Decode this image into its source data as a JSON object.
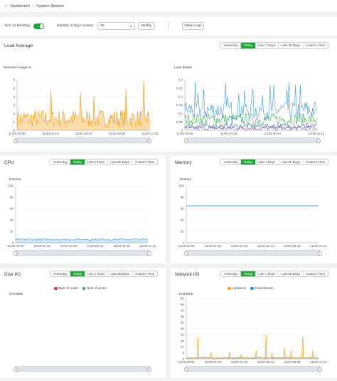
{
  "breadcrumb": {
    "home": "Dashboard",
    "sep": "/",
    "current": "System Monitor"
  },
  "toolbar": {
    "monitor_label": "Turn on Monitory",
    "monitor_on": true,
    "days_label": "Number of days to save:",
    "days_value": "30",
    "modify": "Modify",
    "clean": "Clean Logs"
  },
  "ranges": [
    "Yesterday",
    "Today",
    "Last 7 Days",
    "Last 30 Days",
    "Custom Time"
  ],
  "active_range": "Today",
  "colors": {
    "green": "#20a53a",
    "orange": "#f39c12",
    "blue": "#2e8bd6",
    "darkblue": "#1f4e96",
    "purple": "#7a3cc7",
    "pink": "#e0245e",
    "grid": "#ececec"
  },
  "panels": {
    "load": {
      "title": "Load Average",
      "left_label": "Resource usage %",
      "right_label": "Load details"
    },
    "cpu": {
      "title": "CPU",
      "axis_label": "Percent"
    },
    "memory": {
      "title": "Memory",
      "axis_label": "Percent"
    },
    "disk": {
      "title": "Disk I/O",
      "axis_label": "Unit:KB/s",
      "legend": [
        "Byte of reads",
        "Byte of writes"
      ]
    },
    "network": {
      "title": "Network I/O",
      "axis_label": "Unit:KB/s",
      "legend": [
        "Upstream",
        "Downstream"
      ]
    }
  },
  "chart_data": [
    {
      "id": "load-usage",
      "type": "area",
      "y_ticks": [
        "0",
        "1",
        "2",
        "3",
        "4",
        "5",
        "6"
      ],
      "ylim": [
        0,
        6
      ],
      "x_ticks": [
        "11/20 00:00",
        "11/20 02:15",
        "11/20 06:44",
        "11/20 08:58",
        "11/20 11:12"
      ],
      "series": [
        {
          "color": "#f39c12",
          "typical_range": [
            0.2,
            2.5
          ],
          "peak": 6
        }
      ]
    },
    {
      "id": "load-details",
      "type": "line",
      "y_ticks": [
        "0",
        "0.05",
        "0.1",
        "0.15",
        "0.2",
        "0.25",
        "0.3"
      ],
      "ylim": [
        0,
        0.3
      ],
      "x_ticks": [
        "11/20 00:00",
        "11/20 04:29",
        "11/20 06:44",
        "11/20 11:12"
      ],
      "series": [
        {
          "color": "#2e8bd6"
        },
        {
          "color": "#20a53a"
        },
        {
          "color": "#7a3cc7"
        },
        {
          "color": "#1f4e96"
        }
      ]
    },
    {
      "id": "cpu",
      "type": "area",
      "y_ticks": [
        "0",
        "20",
        "40",
        "60",
        "80",
        "100"
      ],
      "ylim": [
        0,
        100
      ],
      "x_ticks": [
        "11/20 00:00",
        "11/20 02:15",
        "11/20 04:29",
        "11/20 06:44",
        "11/20 08:58",
        "11/20 11:12"
      ],
      "series": [
        {
          "color": "#2e8bd6",
          "approx_value": 6
        }
      ]
    },
    {
      "id": "memory",
      "type": "line",
      "y_ticks": [
        "0",
        "20",
        "40",
        "60",
        "80",
        "100"
      ],
      "ylim": [
        0,
        100
      ],
      "x_ticks": [
        "11/20 00:00",
        "11/20 02:15",
        "11/20 04:29",
        "11/20 06:44",
        "11/20 08:58",
        "11/20 11:12"
      ],
      "series": [
        {
          "color": "#2e8bd6",
          "approx_value": 65
        }
      ]
    },
    {
      "id": "disk",
      "type": "line",
      "series": [
        {
          "name": "Byte of reads",
          "color": "#e0245e"
        },
        {
          "name": "Byte of writes",
          "color": "#2e8bd6"
        }
      ]
    },
    {
      "id": "network",
      "type": "line",
      "y_ticks": [
        "0",
        "5",
        "10",
        "15",
        "20",
        "25",
        "30",
        "35",
        "40",
        "45",
        "50"
      ],
      "ylim": [
        0,
        50
      ],
      "x_ticks": [
        "11/20 00:00",
        "11/20 02:15",
        "11/20 04:29",
        "11/20 06:44",
        "11/20 08:58",
        "11/20 11:12"
      ],
      "series": [
        {
          "name": "Upstream",
          "color": "#f39c12",
          "spikes": [
            18,
            6,
            6,
            4,
            7,
            20,
            5,
            9,
            7,
            19,
            7
          ]
        },
        {
          "name": "Downstream",
          "color": "#2e8bd6",
          "approx_value": 1
        }
      ]
    }
  ]
}
